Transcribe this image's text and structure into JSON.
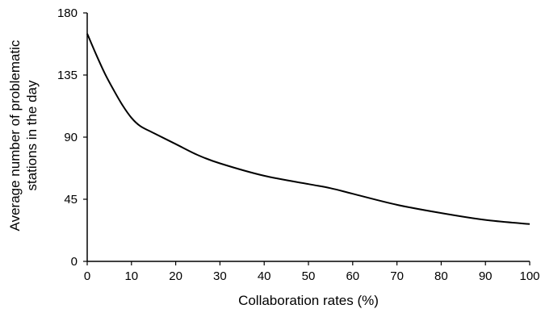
{
  "chart_data": {
    "type": "line",
    "title": "",
    "xlabel": "Collaboration rates (%)",
    "ylabel_lines": [
      "Average number of problematic",
      "stations in the day"
    ],
    "xlim": [
      0,
      100
    ],
    "ylim": [
      0,
      180
    ],
    "xticks": [
      0,
      10,
      20,
      30,
      40,
      50,
      60,
      70,
      80,
      90,
      100
    ],
    "yticks": [
      0,
      45,
      90,
      135,
      180
    ],
    "grid": false,
    "legend": "none",
    "series": [
      {
        "color": "#000000",
        "x": [
          0,
          2,
          4,
          6,
          8,
          10,
          12,
          15,
          20,
          25,
          30,
          40,
          50,
          55,
          60,
          70,
          80,
          90,
          100
        ],
        "y": [
          165,
          150,
          136,
          124,
          113,
          104,
          98,
          93,
          85,
          77,
          71,
          62,
          56,
          53,
          49,
          41,
          35,
          30,
          27
        ]
      }
    ]
  }
}
